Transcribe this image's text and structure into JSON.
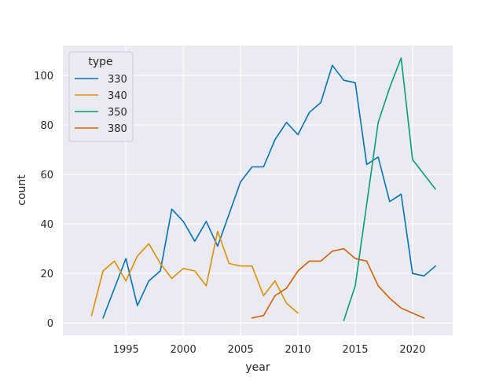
{
  "chart_data": {
    "type": "line",
    "xlabel": "year",
    "ylabel": "count",
    "xlim": [
      1989.5,
      2023.5
    ],
    "ylim": [
      -5,
      112
    ],
    "xticks": [
      1995,
      2000,
      2005,
      2010,
      2015,
      2020
    ],
    "yticks": [
      0,
      20,
      40,
      60,
      80,
      100
    ],
    "grid": true,
    "legend": {
      "title": "type",
      "placement": "top-left"
    },
    "series": [
      {
        "name": "330",
        "color": "#0173b2",
        "x": [
          1993,
          1994,
          1995,
          1996,
          1997,
          1998,
          1999,
          2000,
          2001,
          2002,
          2003,
          2004,
          2005,
          2006,
          2007,
          2008,
          2009,
          2010,
          2011,
          2012,
          2013,
          2014,
          2015,
          2016,
          2017,
          2018,
          2019,
          2020,
          2021,
          2022
        ],
        "y": [
          2,
          14,
          26,
          7,
          17,
          21,
          46,
          41,
          33,
          41,
          31,
          44,
          57,
          63,
          63,
          74,
          81,
          76,
          85,
          89,
          104,
          98,
          97,
          64,
          67,
          49,
          52,
          20,
          19,
          23
        ]
      },
      {
        "name": "340",
        "color": "#de8f05",
        "x": [
          1992,
          1993,
          1994,
          1995,
          1996,
          1997,
          1998,
          1999,
          2000,
          2001,
          2002,
          2003,
          2004,
          2005,
          2006,
          2007,
          2008,
          2009,
          2010
        ],
        "y": [
          3,
          21,
          25,
          17,
          27,
          32,
          24,
          18,
          22,
          21,
          15,
          37,
          24,
          23,
          23,
          11,
          17,
          8,
          4
        ]
      },
      {
        "name": "350",
        "color": "#029e73",
        "x": [
          2014,
          2015,
          2016,
          2017,
          2018,
          2019,
          2020,
          2021,
          2022
        ],
        "y": [
          1,
          15,
          48,
          81,
          95,
          107,
          66,
          60,
          54
        ]
      },
      {
        "name": "380",
        "color": "#d55e00",
        "x": [
          2006,
          2007,
          2008,
          2009,
          2010,
          2011,
          2012,
          2013,
          2014,
          2015,
          2016,
          2017,
          2018,
          2019,
          2020,
          2021
        ],
        "y": [
          2,
          3,
          11,
          14,
          21,
          25,
          25,
          29,
          30,
          26,
          25,
          15,
          10,
          6,
          4,
          2
        ]
      }
    ]
  }
}
